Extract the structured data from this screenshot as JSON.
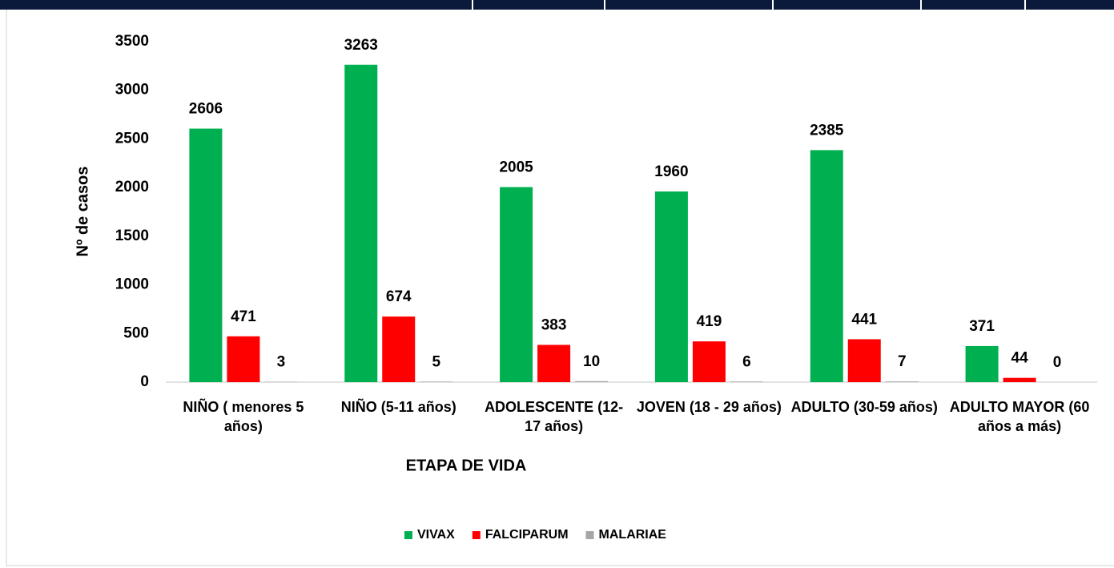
{
  "chart_data": {
    "type": "bar",
    "x_label": "ETAPA DE VIDA",
    "y_label": "Nº de casos",
    "categories": [
      "NIÑO ( menores 5 años)",
      "NIÑO (5-11 años)",
      "ADOLESCENTE (12-17 años)",
      "JOVEN (18 - 29 años)",
      "ADULTO (30-59 años)",
      "ADULTO MAYOR (60 años a más)"
    ],
    "series": [
      {
        "name": "VIVAX",
        "color": "#00b050",
        "values": [
          2606,
          3263,
          2005,
          1960,
          2385,
          371
        ]
      },
      {
        "name": "FALCIPARUM",
        "color": "#ff0000",
        "values": [
          471,
          674,
          383,
          419,
          441,
          44
        ]
      },
      {
        "name": "MALARIAE",
        "color": "#a6a6a6",
        "values": [
          3,
          5,
          10,
          6,
          7,
          0
        ]
      }
    ],
    "ylim": [
      0,
      3500
    ],
    "yticks": [
      0,
      500,
      1000,
      1500,
      2000,
      2500,
      3000,
      3500
    ],
    "legend": "bottom"
  }
}
